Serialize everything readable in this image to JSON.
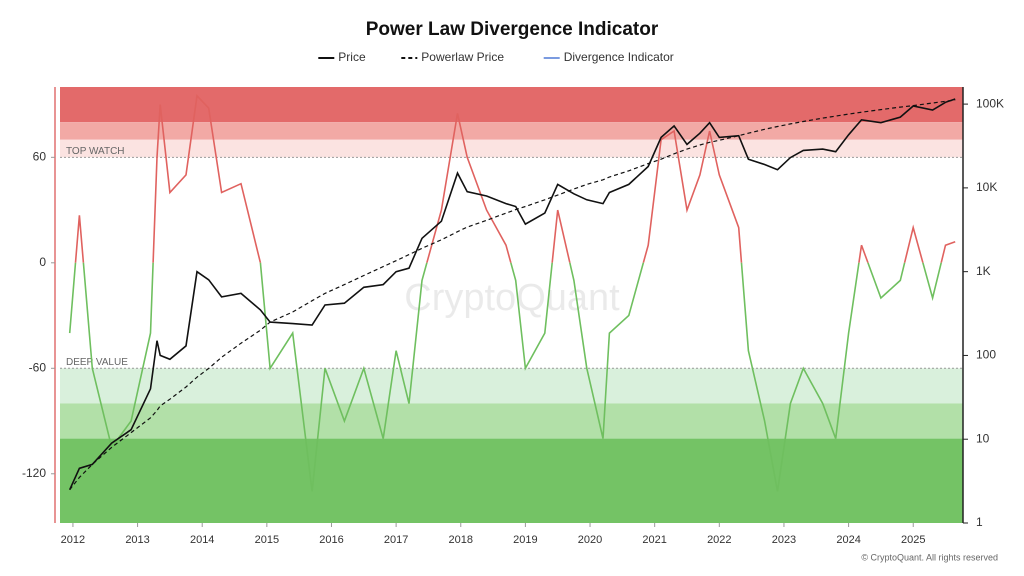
{
  "chart_data": {
    "type": "line",
    "title": "Power Law Divergence Indicator",
    "watermark": "CryptoQuant",
    "footer": "© CryptoQuant. All rights reserved",
    "x": [
      2011.95,
      2012.1,
      2012.3,
      2012.6,
      2012.9,
      2013.2,
      2013.3,
      2013.35,
      2013.5,
      2013.75,
      2013.92,
      2014.1,
      2014.3,
      2014.6,
      2014.9,
      2015.05,
      2015.4,
      2015.7,
      2015.9,
      2016.2,
      2016.5,
      2016.8,
      2017.0,
      2017.2,
      2017.4,
      2017.7,
      2017.95,
      2018.1,
      2018.4,
      2018.7,
      2018.85,
      2019.0,
      2019.3,
      2019.5,
      2019.75,
      2019.95,
      2020.2,
      2020.3,
      2020.6,
      2020.9,
      2021.1,
      2021.3,
      2021.5,
      2021.7,
      2021.85,
      2022.0,
      2022.3,
      2022.45,
      2022.7,
      2022.9,
      2023.1,
      2023.3,
      2023.6,
      2023.8,
      2024.0,
      2024.2,
      2024.5,
      2024.8,
      2025.0,
      2025.3,
      2025.5,
      2025.65
    ],
    "series": [
      {
        "name": "Price",
        "color": "#111111",
        "axis": "y2",
        "dash": false,
        "values": [
          2.5,
          4.5,
          5,
          9,
          13,
          40,
          150,
          100,
          90,
          130,
          1000,
          800,
          500,
          550,
          350,
          250,
          240,
          230,
          400,
          420,
          650,
          700,
          1000,
          1100,
          2500,
          4000,
          15000,
          9000,
          8000,
          6500,
          6000,
          3700,
          5000,
          11000,
          8500,
          7200,
          6500,
          8800,
          11000,
          18000,
          40000,
          55000,
          33000,
          45000,
          60000,
          40000,
          42000,
          22000,
          19000,
          16500,
          23000,
          28000,
          29000,
          27000,
          43000,
          65000,
          60000,
          70000,
          95000,
          85000,
          105000,
          115000
        ]
      },
      {
        "name": "Powerlaw Price",
        "color": "#111111",
        "axis": "y2",
        "dash": true,
        "values": [
          2.5,
          3.5,
          5,
          8,
          12,
          18,
          22,
          25,
          30,
          42,
          55,
          70,
          95,
          140,
          200,
          250,
          330,
          450,
          550,
          700,
          900,
          1150,
          1350,
          1600,
          1900,
          2400,
          3000,
          3400,
          4100,
          5000,
          5500,
          6000,
          7200,
          8200,
          9700,
          11000,
          12500,
          13500,
          16000,
          19500,
          22000,
          25500,
          29000,
          32500,
          35000,
          37000,
          42000,
          45000,
          50000,
          54000,
          58000,
          62000,
          68000,
          72000,
          76000,
          80000,
          86000,
          92000,
          96000,
          103000,
          108000,
          112000
        ]
      },
      {
        "name": "Divergence Indicator",
        "color": "#7b9be0",
        "axis": "y",
        "dash": false,
        "positive_color": "#e0625f",
        "negative_color": "#6fbf5f",
        "values": [
          -40,
          27,
          -60,
          -105,
          -90,
          -40,
          60,
          90,
          40,
          50,
          95,
          88,
          40,
          45,
          0,
          -60,
          -40,
          -130,
          -60,
          -90,
          -60,
          -100,
          -50,
          -80,
          -10,
          30,
          85,
          60,
          30,
          10,
          -10,
          -60,
          -40,
          30,
          -10,
          -60,
          -100,
          -40,
          -30,
          10,
          70,
          75,
          30,
          50,
          75,
          50,
          20,
          -50,
          -90,
          -130,
          -80,
          -60,
          -80,
          -100,
          -40,
          10,
          -20,
          -10,
          20,
          -20,
          10,
          12
        ]
      }
    ],
    "xlim": [
      2011.8,
      2025.77
    ],
    "xticks": [
      2012,
      2013,
      2014,
      2015,
      2016,
      2017,
      2018,
      2019,
      2020,
      2021,
      2022,
      2023,
      2024,
      2025
    ],
    "ylim": [
      -148,
      100
    ],
    "yticks": [
      60,
      0,
      -60,
      -120
    ],
    "y2lim": [
      1,
      160000
    ],
    "y2log": true,
    "y2ticks": [
      1,
      10,
      100,
      {
        "value": 1000,
        "label": "1K"
      },
      {
        "value": 10000,
        "label": "10K"
      },
      {
        "value": 100000,
        "label": "100K"
      }
    ],
    "bands": [
      {
        "from": 80,
        "to": 100,
        "color": "#e36a6a"
      },
      {
        "from": 70,
        "to": 80,
        "color": "#f2a9a5"
      },
      {
        "from": 60,
        "to": 70,
        "color": "#fbe3e1"
      },
      {
        "from": -80,
        "to": -60,
        "color": "#d9f0dc"
      },
      {
        "from": -100,
        "to": -80,
        "color": "#b2e0a8"
      },
      {
        "from": -148,
        "to": -100,
        "color": "#74c365"
      }
    ],
    "annotations": [
      {
        "text": "TOP WATCH",
        "y": 60
      },
      {
        "text": "DEEP VALUE",
        "y": -60
      }
    ],
    "legend": "top"
  }
}
